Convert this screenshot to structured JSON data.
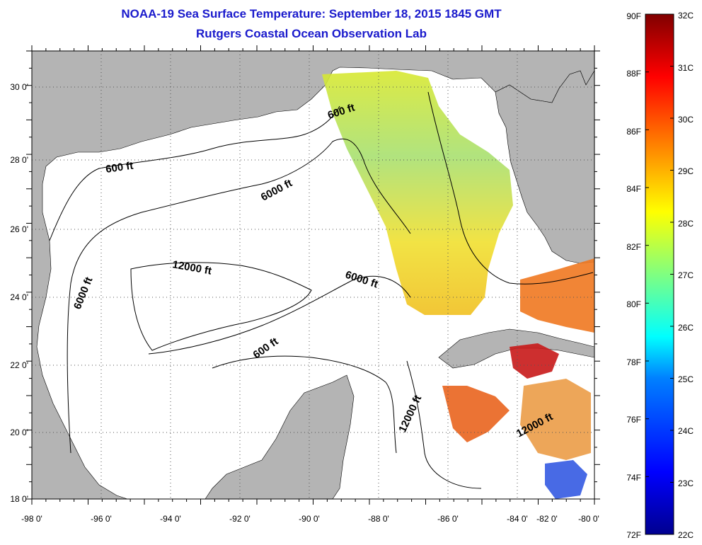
{
  "header": {
    "title": "NOAA-19 Sea Surface Temperature:  September 18, 2015 1845 GMT",
    "subtitle": "Rutgers Coastal Ocean Observation Lab"
  },
  "map": {
    "lon_labels": [
      "-98 0'",
      "-96 0'",
      "-94 0'",
      "-92 0'",
      "-90 0'",
      "-88 0'",
      "-86 0'",
      "-84 0'",
      "-82 0'",
      "-80 0'"
    ],
    "lat_labels": [
      "30 0'",
      "28 0'",
      "26 0'",
      "24 0'",
      "22 0'",
      "20 0'",
      "18 0'"
    ],
    "contour_labels": {
      "a": "600 ft",
      "b": "600 ft",
      "c": "6000 ft",
      "d": "12000 ft",
      "e": "6000 ft",
      "f": "6000 ft",
      "g": "600 ft",
      "h": "12000 ft",
      "i": "12000 ft"
    },
    "colors": {
      "land": "#b4b4b4",
      "water": "#ffffff",
      "grid": "#555555"
    }
  },
  "colorbar": {
    "fahrenheit_labels": [
      "90F",
      "88F",
      "86F",
      "84F",
      "82F",
      "80F",
      "78F",
      "76F",
      "74F",
      "72F"
    ],
    "celsius_labels": [
      "32C",
      "31C",
      "30C",
      "29C",
      "28C",
      "27C",
      "26C",
      "25C",
      "24C",
      "23C",
      "22C"
    ],
    "colors": [
      "#00008f",
      "#0000ff",
      "#0080ff",
      "#00ffff",
      "#80ff80",
      "#ffff00",
      "#ff8000",
      "#ff0000",
      "#800000"
    ]
  }
}
